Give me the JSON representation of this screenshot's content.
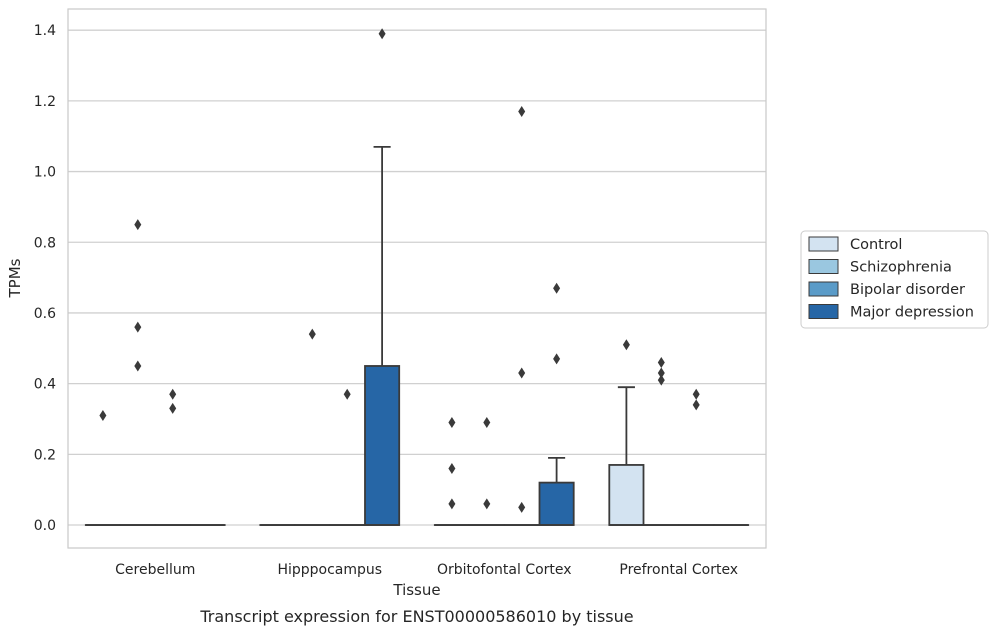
{
  "caption": "Transcript expression for ENST00000586010 by tissue",
  "colors": {
    "grid": "#d0d0d0",
    "frame": "#c9c9c9",
    "edge": "#3a3a3a",
    "flier": "#3a3a3a"
  },
  "chart_data": {
    "type": "box",
    "title": "",
    "xlabel": "Tissue",
    "ylabel": "TPMs",
    "ylim": [
      -0.065,
      1.46
    ],
    "yticks": [
      0.0,
      0.2,
      0.4,
      0.6,
      0.8,
      1.0,
      1.2,
      1.4
    ],
    "ytick_labels": [
      "0.0",
      "0.2",
      "0.4",
      "0.6",
      "0.8",
      "1.0",
      "1.2",
      "1.4"
    ],
    "grid": true,
    "legend_position": "right",
    "categories": [
      "Cerebellum",
      "Hipppocampus",
      "Orbitofontal Cortex",
      "Prefrontal Cortex"
    ],
    "series": [
      {
        "name": "Control",
        "color": "#d3e3f1",
        "boxes": [
          {
            "q1": 0,
            "median": 0,
            "q3": 0,
            "whisker_low": 0,
            "whisker_high": 0,
            "fliers": [
              0.31
            ]
          },
          {
            "q1": 0,
            "median": 0,
            "q3": 0,
            "whisker_low": 0,
            "whisker_high": 0,
            "fliers": []
          },
          {
            "q1": 0,
            "median": 0,
            "q3": 0,
            "whisker_low": 0,
            "whisker_high": 0,
            "fliers": [
              0.06,
              0.16,
              0.29
            ]
          },
          {
            "q1": 0,
            "median": 0,
            "q3": 0.17,
            "whisker_low": 0,
            "whisker_high": 0.39,
            "fliers": [
              0.51
            ]
          }
        ]
      },
      {
        "name": "Schizophrenia",
        "color": "#9ac7e0",
        "boxes": [
          {
            "q1": 0,
            "median": 0,
            "q3": 0,
            "whisker_low": 0,
            "whisker_high": 0,
            "fliers": [
              0.45,
              0.56,
              0.85
            ]
          },
          {
            "q1": 0,
            "median": 0,
            "q3": 0,
            "whisker_low": 0,
            "whisker_high": 0,
            "fliers": [
              0.54
            ]
          },
          {
            "q1": 0,
            "median": 0,
            "q3": 0,
            "whisker_low": 0,
            "whisker_high": 0,
            "fliers": [
              0.06,
              0.29
            ]
          },
          {
            "q1": 0,
            "median": 0,
            "q3": 0,
            "whisker_low": 0,
            "whisker_high": 0,
            "fliers": [
              0.41,
              0.43,
              0.46
            ]
          }
        ]
      },
      {
        "name": "Bipolar disorder",
        "color": "#5a9bc8",
        "boxes": [
          {
            "q1": 0,
            "median": 0,
            "q3": 0,
            "whisker_low": 0,
            "whisker_high": 0,
            "fliers": [
              0.33,
              0.37
            ]
          },
          {
            "q1": 0,
            "median": 0,
            "q3": 0,
            "whisker_low": 0,
            "whisker_high": 0,
            "fliers": [
              0.37
            ]
          },
          {
            "q1": 0,
            "median": 0,
            "q3": 0,
            "whisker_low": 0,
            "whisker_high": 0,
            "fliers": [
              0.05,
              0.43,
              1.17
            ]
          },
          {
            "q1": 0,
            "median": 0,
            "q3": 0,
            "whisker_low": 0,
            "whisker_high": 0,
            "fliers": [
              0.34,
              0.37
            ]
          }
        ]
      },
      {
        "name": "Major depression",
        "color": "#2666a6",
        "boxes": [
          {
            "q1": 0,
            "median": 0,
            "q3": 0,
            "whisker_low": 0,
            "whisker_high": 0,
            "fliers": []
          },
          {
            "q1": 0,
            "median": 0,
            "q3": 0.45,
            "whisker_low": 0,
            "whisker_high": 1.07,
            "fliers": [
              1.39
            ]
          },
          {
            "q1": 0,
            "median": 0,
            "q3": 0.12,
            "whisker_low": 0,
            "whisker_high": 0.19,
            "fliers": [
              0.47,
              0.67
            ]
          },
          {
            "q1": 0,
            "median": 0,
            "q3": 0,
            "whisker_low": 0,
            "whisker_high": 0,
            "fliers": []
          }
        ]
      }
    ]
  }
}
